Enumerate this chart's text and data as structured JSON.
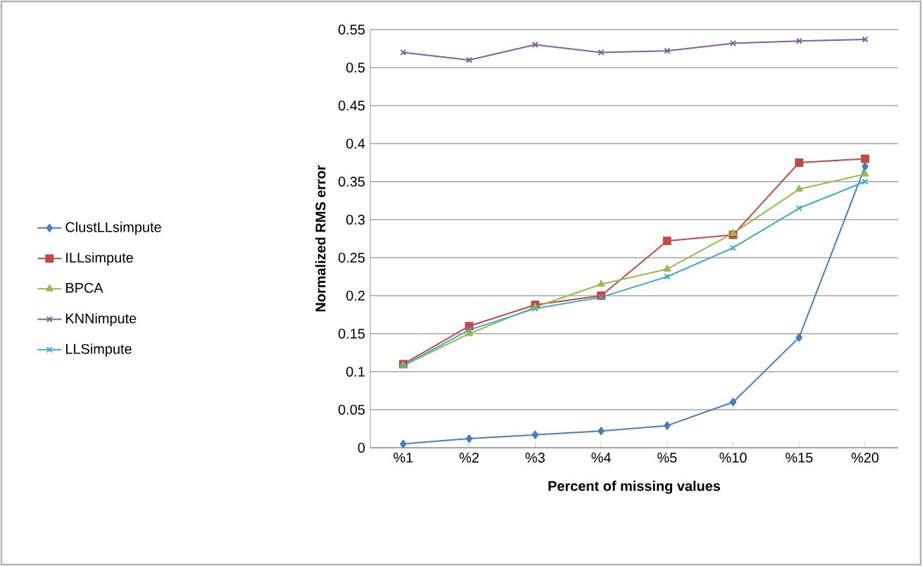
{
  "chart_data": {
    "type": "line",
    "xlabel": "Percent of missing values",
    "ylabel": "Normalized RMS error",
    "categories": [
      "%1",
      "%2",
      "%3",
      "%4",
      "%5",
      "%10",
      "%15",
      "%20"
    ],
    "series": [
      {
        "name": "ClustLLsimpute",
        "color": "#4a7ebb",
        "marker": "diamond",
        "values": [
          0.005,
          0.012,
          0.017,
          0.022,
          0.029,
          0.06,
          0.145,
          0.37
        ]
      },
      {
        "name": "ILLsimpute",
        "color": "#be4b48",
        "marker": "square",
        "values": [
          0.11,
          0.16,
          0.188,
          0.2,
          0.272,
          0.28,
          0.375,
          0.38
        ]
      },
      {
        "name": "BPCA",
        "color": "#98b954",
        "marker": "triangle",
        "values": [
          0.108,
          0.15,
          0.185,
          0.215,
          0.235,
          0.282,
          0.34,
          0.36
        ]
      },
      {
        "name": "KNNimpute",
        "color": "#7d60a0",
        "marker": "cross",
        "values": [
          0.52,
          0.51,
          0.53,
          0.52,
          0.522,
          0.532,
          0.535,
          0.537
        ]
      },
      {
        "name": "LLSimpute",
        "color": "#46aac5",
        "marker": "cross",
        "values": [
          0.108,
          0.155,
          0.183,
          0.198,
          0.225,
          0.263,
          0.315,
          0.35
        ]
      }
    ],
    "ylim": [
      0,
      0.55
    ],
    "yticks": [
      0,
      0.05,
      0.1,
      0.15,
      0.2,
      0.25,
      0.3,
      0.35,
      0.4,
      0.45,
      0.5,
      0.55
    ],
    "grid": "y",
    "legend": "left"
  }
}
